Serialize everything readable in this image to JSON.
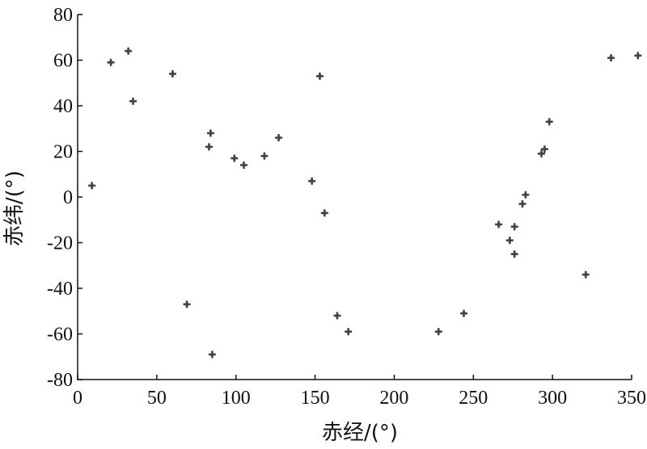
{
  "chart_data": {
    "type": "scatter",
    "title": "",
    "xlabel": "赤经/(°)",
    "ylabel": "赤纬/(°)",
    "xlim": [
      0,
      350
    ],
    "ylim": [
      -80,
      80
    ],
    "xticks": [
      0,
      50,
      100,
      150,
      200,
      250,
      300,
      350
    ],
    "yticks": [
      -80,
      -60,
      -40,
      -20,
      0,
      20,
      40,
      60,
      80
    ],
    "grid": false,
    "legend": "none",
    "marker_color": "#444444",
    "marker": "plus",
    "points": [
      {
        "x": 9,
        "y": 5
      },
      {
        "x": 21,
        "y": 59
      },
      {
        "x": 32,
        "y": 64
      },
      {
        "x": 35,
        "y": 42
      },
      {
        "x": 60,
        "y": 54
      },
      {
        "x": 69,
        "y": -47
      },
      {
        "x": 83,
        "y": 22
      },
      {
        "x": 84,
        "y": 28
      },
      {
        "x": 85,
        "y": -69
      },
      {
        "x": 99,
        "y": 17
      },
      {
        "x": 105,
        "y": 14
      },
      {
        "x": 118,
        "y": 18
      },
      {
        "x": 127,
        "y": 26
      },
      {
        "x": 148,
        "y": 7
      },
      {
        "x": 153,
        "y": 53
      },
      {
        "x": 156,
        "y": -7
      },
      {
        "x": 164,
        "y": -52
      },
      {
        "x": 171,
        "y": -59
      },
      {
        "x": 228,
        "y": -59
      },
      {
        "x": 244,
        "y": -51
      },
      {
        "x": 266,
        "y": -12
      },
      {
        "x": 273,
        "y": -19
      },
      {
        "x": 276,
        "y": -13
      },
      {
        "x": 276,
        "y": -25
      },
      {
        "x": 281,
        "y": -3
      },
      {
        "x": 283,
        "y": 1
      },
      {
        "x": 293,
        "y": 19
      },
      {
        "x": 295,
        "y": 21
      },
      {
        "x": 298,
        "y": 33
      },
      {
        "x": 321,
        "y": -34
      },
      {
        "x": 337,
        "y": 61
      },
      {
        "x": 354,
        "y": 62
      }
    ]
  }
}
